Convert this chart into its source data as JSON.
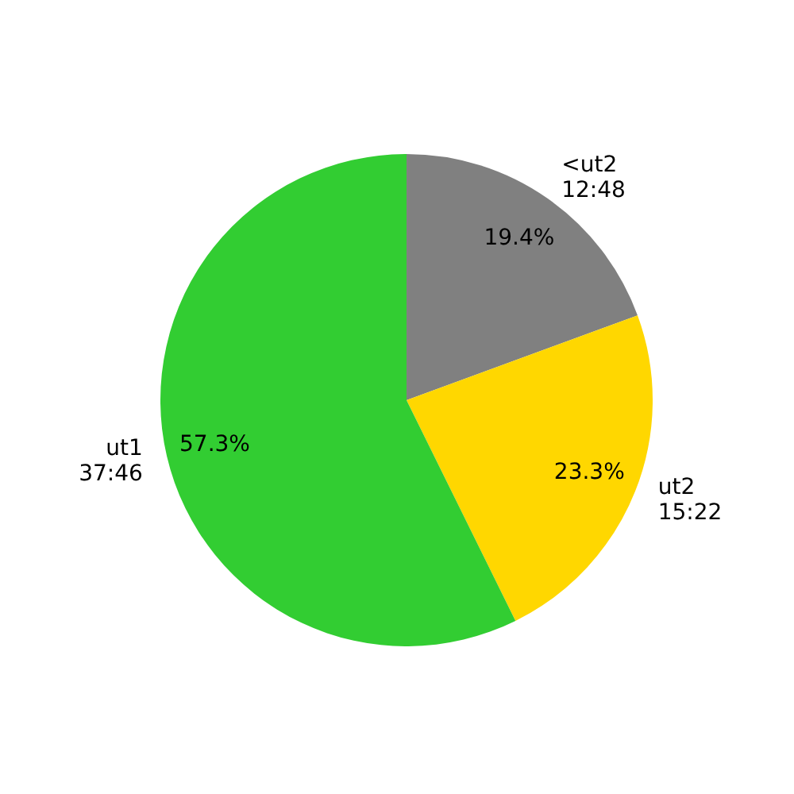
{
  "chart_data": {
    "type": "pie",
    "categories": [
      "<ut2\n12:48",
      "ut2\n15:22",
      "ut1\n37:46"
    ],
    "values": [
      19.4,
      23.3,
      57.3
    ],
    "colors": [
      "#808080",
      "#ffd700",
      "#32cd32"
    ],
    "value_labels": [
      "19.4%",
      "23.3%",
      "57.3%"
    ]
  }
}
